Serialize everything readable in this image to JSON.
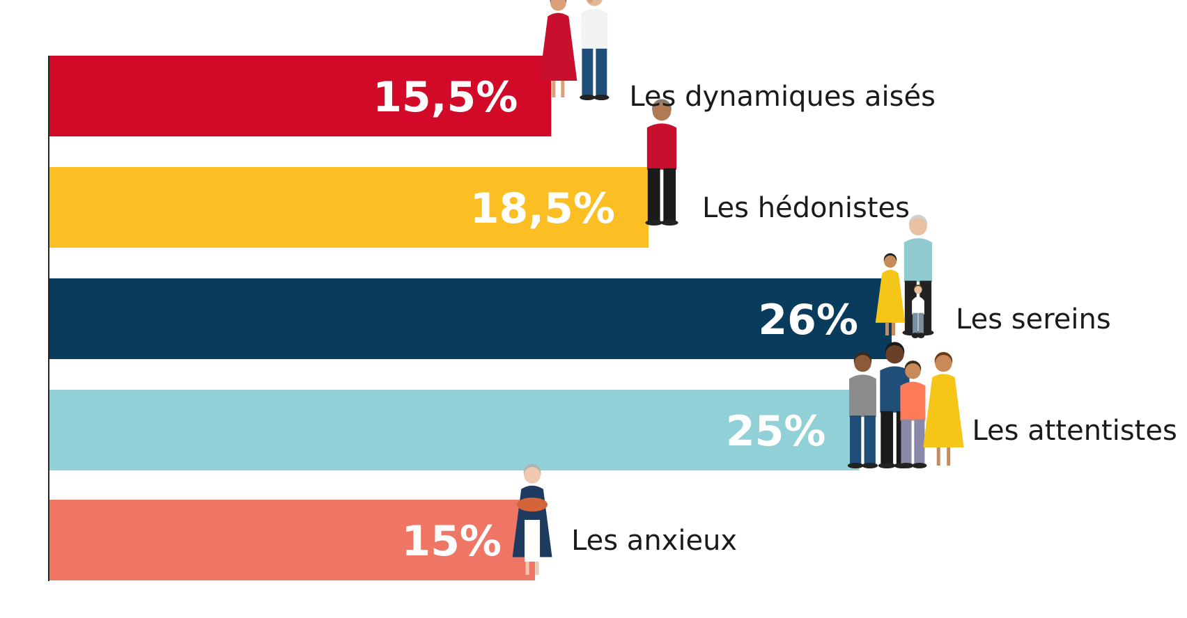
{
  "chart_data": {
    "type": "bar",
    "orientation": "horizontal",
    "categories": [
      "Les dynamiques aisés",
      "Les hédonistes",
      "Les sereins",
      "Les attentistes",
      "Les anxieux"
    ],
    "values": [
      15.5,
      18.5,
      26,
      25,
      15
    ],
    "value_labels": [
      "15,5%",
      "18,5%",
      "26%",
      "25%",
      "15%"
    ],
    "colors": [
      "#d20a28",
      "#fbbf24",
      "#083b5c",
      "#90d0d6",
      "#ef7664"
    ],
    "icons": [
      "dancing-couple-icon",
      "man-in-cardigan-icon",
      "grandmother-with-children-icon",
      "family-group-icon",
      "woman-with-cake-icon"
    ],
    "unit": "%",
    "xlim": [
      0,
      26
    ],
    "grid": false,
    "legend": "none",
    "title": "",
    "xlabel": "",
    "ylabel": ""
  }
}
